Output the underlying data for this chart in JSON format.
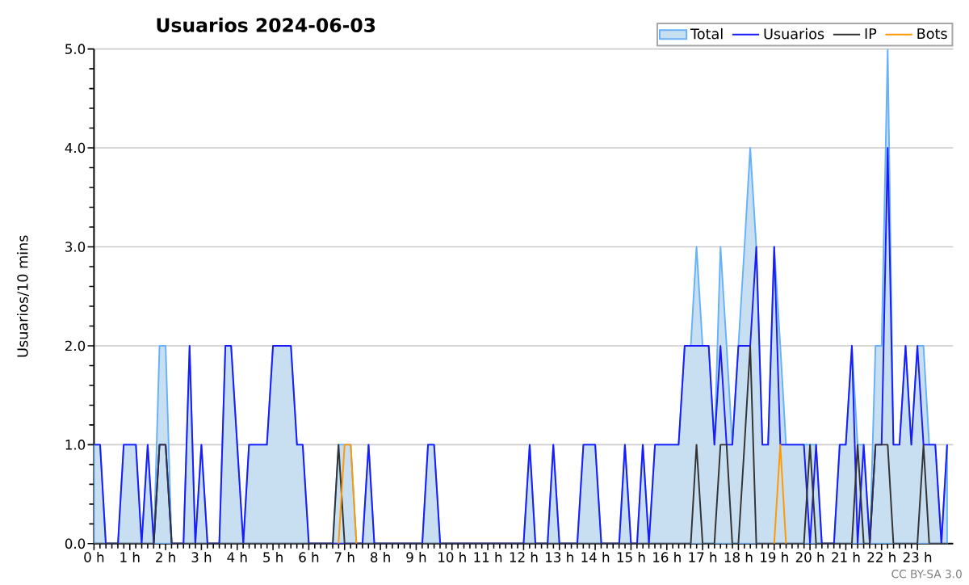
{
  "chart_data": {
    "type": "line",
    "title": "Usuarios  2024-06-03",
    "ylabel": "Usuarios/10 mins",
    "x": [
      0,
      0.17,
      0.33,
      0.5,
      0.67,
      0.83,
      1,
      1.17,
      1.33,
      1.5,
      1.67,
      1.83,
      2,
      2.17,
      2.33,
      2.5,
      2.67,
      2.83,
      3,
      3.17,
      3.33,
      3.5,
      3.67,
      3.83,
      4,
      4.17,
      4.33,
      4.5,
      4.67,
      4.83,
      5,
      5.17,
      5.33,
      5.5,
      5.67,
      5.83,
      6,
      6.17,
      6.33,
      6.5,
      6.67,
      6.83,
      7,
      7.17,
      7.33,
      7.5,
      7.67,
      7.83,
      8,
      8.17,
      8.33,
      8.5,
      8.67,
      8.83,
      9,
      9.17,
      9.33,
      9.5,
      9.67,
      9.83,
      10,
      10.17,
      10.33,
      10.5,
      10.67,
      10.83,
      11,
      11.17,
      11.33,
      11.5,
      11.67,
      11.83,
      12,
      12.17,
      12.33,
      12.5,
      12.67,
      12.83,
      13,
      13.17,
      13.33,
      13.5,
      13.67,
      13.83,
      14,
      14.17,
      14.33,
      14.5,
      14.67,
      14.83,
      15,
      15.17,
      15.33,
      15.5,
      15.67,
      15.83,
      16,
      16.17,
      16.33,
      16.5,
      16.67,
      16.83,
      17,
      17.17,
      17.33,
      17.5,
      17.67,
      17.83,
      18,
      18.17,
      18.33,
      18.5,
      18.67,
      18.83,
      19,
      19.17,
      19.33,
      19.5,
      19.67,
      19.83,
      20,
      20.17,
      20.33,
      20.5,
      20.67,
      20.83,
      21,
      21.17,
      21.33,
      21.5,
      21.67,
      21.83,
      22,
      22.17,
      22.33,
      22.5,
      22.67,
      22.83,
      23,
      23.17,
      23.33,
      23.5,
      23.67,
      23.83
    ],
    "series": [
      {
        "name": "Total",
        "type": "area",
        "color": "#c8dff2",
        "values": [
          1,
          1,
          0,
          0,
          0,
          1,
          1,
          1,
          0,
          1,
          0,
          2,
          2,
          0,
          0,
          0,
          2,
          0,
          1,
          0,
          0,
          0,
          2,
          2,
          1,
          0,
          1,
          1,
          1,
          1,
          2,
          2,
          2,
          2,
          1,
          1,
          0,
          0,
          0,
          0,
          0,
          1,
          1,
          1,
          0,
          0,
          1,
          0,
          0,
          0,
          0,
          0,
          0,
          0,
          0,
          0,
          1,
          1,
          0,
          0,
          0,
          0,
          0,
          0,
          0,
          0,
          0,
          0,
          0,
          0,
          0,
          0,
          0,
          1,
          0,
          0,
          0,
          1,
          0,
          0,
          0,
          0,
          1,
          1,
          1,
          0,
          0,
          0,
          0,
          1,
          0,
          0,
          1,
          0,
          1,
          1,
          1,
          1,
          1,
          2,
          2,
          3,
          2,
          2,
          1,
          3,
          2,
          1,
          2,
          3,
          4,
          3,
          1,
          1,
          3,
          2,
          1,
          1,
          1,
          1,
          1,
          1,
          0,
          0,
          0,
          1,
          1,
          2,
          1,
          1,
          0,
          2,
          2,
          5,
          1,
          1,
          2,
          1,
          2,
          2,
          1,
          1,
          0,
          1
        ]
      },
      {
        "name": "Usuarios",
        "color": "#1a1aff",
        "values": [
          1,
          1,
          0,
          0,
          0,
          1,
          1,
          1,
          0,
          1,
          0,
          1,
          1,
          0,
          0,
          0,
          2,
          0,
          1,
          0,
          0,
          0,
          2,
          2,
          1,
          0,
          1,
          1,
          1,
          1,
          2,
          2,
          2,
          2,
          1,
          1,
          0,
          0,
          0,
          0,
          0,
          0,
          0,
          0,
          0,
          0,
          1,
          0,
          0,
          0,
          0,
          0,
          0,
          0,
          0,
          0,
          1,
          1,
          0,
          0,
          0,
          0,
          0,
          0,
          0,
          0,
          0,
          0,
          0,
          0,
          0,
          0,
          0,
          1,
          0,
          0,
          0,
          1,
          0,
          0,
          0,
          0,
          1,
          1,
          1,
          0,
          0,
          0,
          0,
          1,
          0,
          0,
          1,
          0,
          1,
          1,
          1,
          1,
          1,
          2,
          2,
          2,
          2,
          2,
          1,
          2,
          1,
          1,
          2,
          2,
          2,
          3,
          1,
          1,
          3,
          1,
          1,
          1,
          1,
          1,
          0,
          1,
          0,
          0,
          0,
          1,
          1,
          2,
          0,
          1,
          0,
          1,
          1,
          4,
          1,
          1,
          2,
          1,
          2,
          1,
          1,
          1,
          0,
          1
        ]
      },
      {
        "name": "IP",
        "color": "#333333",
        "values": [
          0,
          0,
          0,
          0,
          0,
          0,
          0,
          0,
          0,
          0,
          0,
          1,
          1,
          0,
          0,
          0,
          0,
          0,
          0,
          0,
          0,
          0,
          0,
          0,
          0,
          0,
          0,
          0,
          0,
          0,
          0,
          0,
          0,
          0,
          0,
          0,
          0,
          0,
          0,
          0,
          0,
          1,
          0,
          0,
          0,
          0,
          0,
          0,
          0,
          0,
          0,
          0,
          0,
          0,
          0,
          0,
          0,
          0,
          0,
          0,
          0,
          0,
          0,
          0,
          0,
          0,
          0,
          0,
          0,
          0,
          0,
          0,
          0,
          0,
          0,
          0,
          0,
          0,
          0,
          0,
          0,
          0,
          0,
          0,
          0,
          0,
          0,
          0,
          0,
          0,
          0,
          0,
          0,
          0,
          0,
          0,
          0,
          0,
          0,
          0,
          0,
          1,
          0,
          0,
          0,
          1,
          1,
          0,
          0,
          1,
          2,
          0,
          0,
          0,
          0,
          0,
          0,
          0,
          0,
          0,
          1,
          0,
          0,
          0,
          0,
          0,
          0,
          0,
          1,
          0,
          0,
          1,
          1,
          1,
          0,
          0,
          0,
          0,
          0,
          1,
          0,
          0,
          0,
          0
        ]
      },
      {
        "name": "Bots",
        "color": "#ff9900",
        "values": [
          null,
          null,
          null,
          null,
          null,
          null,
          null,
          null,
          null,
          null,
          null,
          null,
          null,
          null,
          null,
          null,
          null,
          null,
          null,
          null,
          null,
          null,
          null,
          null,
          null,
          null,
          null,
          null,
          null,
          null,
          null,
          null,
          null,
          null,
          null,
          null,
          null,
          null,
          null,
          null,
          null,
          0,
          1,
          1,
          0,
          null,
          null,
          null,
          null,
          null,
          null,
          null,
          null,
          null,
          null,
          null,
          null,
          null,
          null,
          null,
          null,
          null,
          null,
          null,
          null,
          null,
          null,
          null,
          null,
          null,
          null,
          null,
          null,
          null,
          null,
          null,
          null,
          null,
          null,
          null,
          null,
          null,
          null,
          null,
          null,
          null,
          null,
          null,
          null,
          null,
          null,
          null,
          null,
          null,
          null,
          null,
          null,
          null,
          null,
          null,
          null,
          null,
          null,
          null,
          null,
          null,
          null,
          null,
          null,
          null,
          null,
          null,
          null,
          null,
          0,
          1,
          0,
          null,
          null,
          null,
          null,
          null,
          null,
          null,
          null,
          null,
          null,
          null,
          null,
          null,
          null,
          null,
          null,
          null,
          null,
          null,
          null,
          null,
          null,
          null,
          null,
          null,
          null,
          null
        ]
      }
    ],
    "xlim": [
      0,
      24
    ],
    "xticks": [
      {
        "value": 0,
        "label": "0 h"
      },
      {
        "value": 1,
        "label": "1 h"
      },
      {
        "value": 2,
        "label": "2 h"
      },
      {
        "value": 3,
        "label": "3 h"
      },
      {
        "value": 4,
        "label": "4 h"
      },
      {
        "value": 5,
        "label": "5 h"
      },
      {
        "value": 6,
        "label": "6 h"
      },
      {
        "value": 7,
        "label": "7 h"
      },
      {
        "value": 8,
        "label": "8 h"
      },
      {
        "value": 9,
        "label": "9 h"
      },
      {
        "value": 10,
        "label": "10 h"
      },
      {
        "value": 11,
        "label": "11 h"
      },
      {
        "value": 12,
        "label": "12 h"
      },
      {
        "value": 13,
        "label": "13 h"
      },
      {
        "value": 14,
        "label": "14 h"
      },
      {
        "value": 15,
        "label": "15 h"
      },
      {
        "value": 16,
        "label": "16 h"
      },
      {
        "value": 17,
        "label": "17 h"
      },
      {
        "value": 18,
        "label": "18 h"
      },
      {
        "value": 19,
        "label": "19 h"
      },
      {
        "value": 20,
        "label": "20 h"
      },
      {
        "value": 21,
        "label": "21 h"
      },
      {
        "value": 22,
        "label": "22 h"
      },
      {
        "value": 23,
        "label": "23 h"
      }
    ],
    "ylim": [
      0,
      5
    ],
    "yticks": [
      {
        "value": 0,
        "label": "0.0"
      },
      {
        "value": 1,
        "label": "1.0"
      },
      {
        "value": 2,
        "label": "2.0"
      },
      {
        "value": 3,
        "label": "3.0"
      },
      {
        "value": 4,
        "label": "4.0"
      },
      {
        "value": 5,
        "label": "5.0"
      }
    ],
    "grid": "y",
    "legend": "top right",
    "marker": "none",
    "line_style": "solid",
    "annotations": [
      "CC BY-SA 3.0"
    ]
  }
}
